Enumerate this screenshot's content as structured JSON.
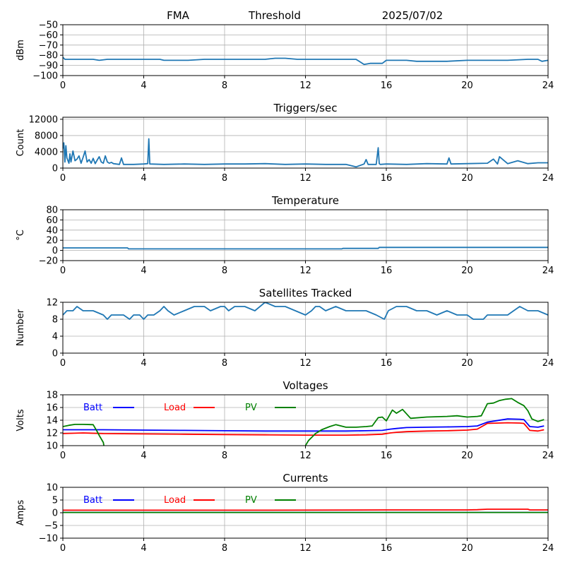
{
  "header": {
    "left": "FMA",
    "center": "Threshold",
    "right": "2025/07/02"
  },
  "colors": {
    "series": "#1f77b4",
    "batt": "#0000ff",
    "load": "#ff0000",
    "pv": "#008000",
    "grid": "#b0b0b0"
  },
  "x_axis": {
    "min": 0,
    "max": 24,
    "ticks": [
      0,
      4,
      8,
      12,
      16,
      20,
      24
    ]
  },
  "chart_data": [
    {
      "id": "noise",
      "type": "line",
      "title": "",
      "ylabel": "dBm",
      "ylim": [
        -100,
        -50
      ],
      "yticks": [
        -100,
        -90,
        -80,
        -70,
        -60,
        -50
      ],
      "grid": true,
      "series": [
        {
          "x": [
            0,
            0.1,
            0.5,
            1.0,
            1.5,
            1.8,
            2.2,
            3.0,
            4.0,
            4.8,
            5.0,
            6.0,
            6.2,
            7.0,
            8.0,
            9.0,
            10.0,
            10.5,
            11.0,
            11.6,
            12.0,
            12.5,
            13.0,
            14.0,
            14.5,
            14.9,
            15.2,
            15.8,
            16.0,
            16.5,
            17.0,
            17.5,
            18.0,
            19.0,
            20.0,
            21.0,
            22.0,
            23.0,
            23.5,
            23.7,
            24.0
          ],
          "values": [
            -82,
            -84,
            -84,
            -84,
            -84,
            -85,
            -84,
            -84,
            -84,
            -84,
            -85,
            -85,
            -85,
            -84,
            -84,
            -84,
            -84,
            -83,
            -83,
            -84,
            -84,
            -84,
            -84,
            -84,
            -84,
            -89,
            -88,
            -88,
            -85,
            -85,
            -85,
            -86,
            -86,
            -86,
            -85,
            -85,
            -85,
            -84,
            -84,
            -86,
            -85
          ]
        }
      ]
    },
    {
      "id": "triggers",
      "type": "line",
      "title": "Triggers/sec",
      "ylabel": "Count",
      "ylim": [
        0,
        12500
      ],
      "yticks": [
        0,
        4000,
        8000,
        12000
      ],
      "grid": true,
      "series": [
        {
          "x": [
            0,
            0.05,
            0.1,
            0.15,
            0.2,
            0.3,
            0.35,
            0.4,
            0.5,
            0.6,
            0.7,
            0.8,
            0.9,
            1.0,
            1.1,
            1.2,
            1.3,
            1.4,
            1.5,
            1.6,
            1.7,
            1.8,
            1.9,
            2.0,
            2.1,
            2.2,
            2.3,
            2.4,
            2.5,
            2.8,
            2.9,
            3.0,
            3.5,
            4.0,
            4.2,
            4.25,
            4.3,
            5.0,
            6.0,
            7.0,
            8.0,
            9.0,
            10.0,
            11.0,
            12.0,
            13.0,
            14.0,
            14.5,
            14.9,
            15.0,
            15.1,
            15.5,
            15.6,
            15.65,
            15.7,
            16.0,
            17.0,
            18.0,
            19.0,
            19.1,
            19.2,
            20.0,
            21.0,
            21.3,
            21.5,
            21.6,
            22.0,
            22.5,
            23.0,
            23.5,
            24.0
          ],
          "values": [
            4800,
            6200,
            1500,
            5500,
            2500,
            1200,
            3500,
            1500,
            4200,
            1800,
            2200,
            3000,
            1200,
            2600,
            4200,
            1500,
            2100,
            1200,
            2400,
            1100,
            2000,
            2800,
            1500,
            1200,
            3000,
            1500,
            1200,
            1400,
            1100,
            900,
            2500,
            900,
            900,
            1000,
            1100,
            7200,
            1000,
            900,
            1000,
            900,
            1000,
            1000,
            1100,
            900,
            1000,
            900,
            900,
            300,
            1000,
            2100,
            900,
            900,
            5000,
            1100,
            900,
            1000,
            900,
            1100,
            1000,
            2500,
            1000,
            1100,
            1200,
            2200,
            1000,
            2800,
            1100,
            1800,
            1100,
            1300,
            1300
          ]
        }
      ]
    },
    {
      "id": "temperature",
      "type": "line",
      "title": "Temperature",
      "ylabel": "°C",
      "ylim": [
        -20,
        80
      ],
      "yticks": [
        -20,
        0,
        20,
        40,
        60,
        80
      ],
      "grid": true,
      "series": [
        {
          "x": [
            0,
            3.2,
            3.25,
            13.8,
            13.85,
            15.6,
            15.65,
            24
          ],
          "values": [
            5,
            5,
            3,
            3,
            4,
            4,
            6,
            6
          ]
        }
      ]
    },
    {
      "id": "satellites",
      "type": "line",
      "title": "Satellites Tracked",
      "ylabel": "Number",
      "ylim": [
        0,
        12
      ],
      "yticks": [
        0,
        4,
        8,
        12
      ],
      "grid": true,
      "series": [
        {
          "x": [
            0,
            0.2,
            0.5,
            0.7,
            1.0,
            1.5,
            2.0,
            2.2,
            2.4,
            2.8,
            3.0,
            3.3,
            3.5,
            3.8,
            4.0,
            4.2,
            4.5,
            4.8,
            5.0,
            5.2,
            5.5,
            6.0,
            6.5,
            7.0,
            7.3,
            7.8,
            8.0,
            8.2,
            8.5,
            9.0,
            9.5,
            10.0,
            10.5,
            11.0,
            11.5,
            12.0,
            12.3,
            12.5,
            12.7,
            13.0,
            13.5,
            14.0,
            14.5,
            15.0,
            15.5,
            15.9,
            16.1,
            16.5,
            17.0,
            17.5,
            18.0,
            18.5,
            19.0,
            19.5,
            20.0,
            20.3,
            20.8,
            21.0,
            21.3,
            22.0,
            22.3,
            22.6,
            23.0,
            23.5,
            24.0
          ],
          "values": [
            9,
            10,
            10,
            11,
            10,
            10,
            9,
            8,
            9,
            9,
            9,
            8,
            9,
            9,
            8,
            9,
            9,
            10,
            11,
            10,
            9,
            10,
            11,
            11,
            10,
            11,
            11,
            10,
            11,
            11,
            10,
            12,
            11,
            11,
            10,
            9,
            10,
            11,
            11,
            10,
            11,
            10,
            10,
            10,
            9,
            8,
            10,
            11,
            11,
            10,
            10,
            9,
            10,
            9,
            9,
            8,
            8,
            9,
            9,
            9,
            10,
            11,
            10,
            10,
            9
          ]
        }
      ]
    },
    {
      "id": "voltages",
      "type": "line",
      "title": "Voltages",
      "ylabel": "Volts",
      "ylim": [
        10,
        18
      ],
      "yticks": [
        10,
        12,
        14,
        16,
        18
      ],
      "grid": true,
      "legend": "top-left",
      "series": [
        {
          "name": "Batt",
          "color_key": "batt",
          "x": [
            0,
            1,
            2,
            4,
            6,
            8,
            10,
            12,
            14,
            15,
            15.8,
            16.2,
            16.5,
            17,
            18,
            19,
            20,
            20.5,
            21.0,
            22,
            22.6,
            22.8,
            23.1,
            23.5,
            23.8
          ],
          "values": [
            12.5,
            12.5,
            12.5,
            12.45,
            12.4,
            12.35,
            12.3,
            12.3,
            12.3,
            12.35,
            12.4,
            12.6,
            12.7,
            12.85,
            12.9,
            12.95,
            13.0,
            13.1,
            13.7,
            14.2,
            14.15,
            14.1,
            13.0,
            12.9,
            13.1
          ]
        },
        {
          "name": "Load",
          "color_key": "load",
          "x": [
            0,
            1,
            2,
            4,
            6,
            8,
            10,
            12,
            14,
            15,
            15.8,
            16.2,
            16.5,
            17,
            18,
            19,
            20,
            20.5,
            21.0,
            22,
            22.6,
            22.8,
            23.1,
            23.5,
            23.8
          ],
          "values": [
            11.9,
            12.0,
            11.9,
            11.85,
            11.8,
            11.75,
            11.7,
            11.65,
            11.65,
            11.7,
            11.8,
            12.0,
            12.1,
            12.2,
            12.3,
            12.35,
            12.45,
            12.6,
            13.5,
            13.6,
            13.55,
            13.5,
            12.4,
            12.3,
            12.5
          ]
        },
        {
          "name": "PV",
          "color_key": "pv",
          "x": [
            0,
            0.3,
            0.6,
            1.0,
            1.5,
            1.7,
            1.8,
            2.0,
            2.03,
            null,
            12.0,
            12.15,
            12.5,
            12.8,
            13.2,
            13.5,
            14.0,
            14.5,
            15.0,
            15.3,
            15.6,
            15.8,
            16.0,
            16.3,
            16.5,
            16.8,
            17.2,
            18.0,
            19.0,
            19.5,
            20.0,
            20.5,
            20.7,
            21.0,
            21.3,
            21.6,
            21.9,
            22.2,
            22.5,
            22.8,
            23.0,
            23.2,
            23.5,
            23.8
          ],
          "values": [
            13.0,
            13.2,
            13.35,
            13.35,
            13.3,
            12.2,
            11.6,
            10.5,
            10.0,
            null,
            10.0,
            10.8,
            11.9,
            12.5,
            13.0,
            13.3,
            12.9,
            12.9,
            13.0,
            13.1,
            14.4,
            14.5,
            13.9,
            15.6,
            15.1,
            15.7,
            14.3,
            14.5,
            14.6,
            14.7,
            14.5,
            14.6,
            14.7,
            16.6,
            16.7,
            17.1,
            17.3,
            17.4,
            16.8,
            16.3,
            15.5,
            14.2,
            13.8,
            14.1
          ]
        }
      ]
    },
    {
      "id": "currents",
      "type": "line",
      "title": "Currents",
      "ylabel": "Amps",
      "ylim": [
        -10,
        10
      ],
      "yticks": [
        -10,
        -5,
        0,
        5,
        10
      ],
      "grid": true,
      "legend": "top-left",
      "series": [
        {
          "name": "Batt",
          "color_key": "batt",
          "x": [
            0,
            24
          ],
          "values": [
            0.1,
            0.1
          ]
        },
        {
          "name": "Load",
          "color_key": "load",
          "x": [
            0,
            10,
            16,
            20,
            20.5,
            21.0,
            23,
            23.1,
            24
          ],
          "values": [
            1.0,
            1.0,
            1.1,
            1.1,
            1.2,
            1.4,
            1.4,
            1.1,
            1.1
          ]
        },
        {
          "name": "PV",
          "color_key": "pv",
          "x": [
            0,
            24
          ],
          "values": [
            0.1,
            0.1
          ]
        }
      ]
    }
  ]
}
